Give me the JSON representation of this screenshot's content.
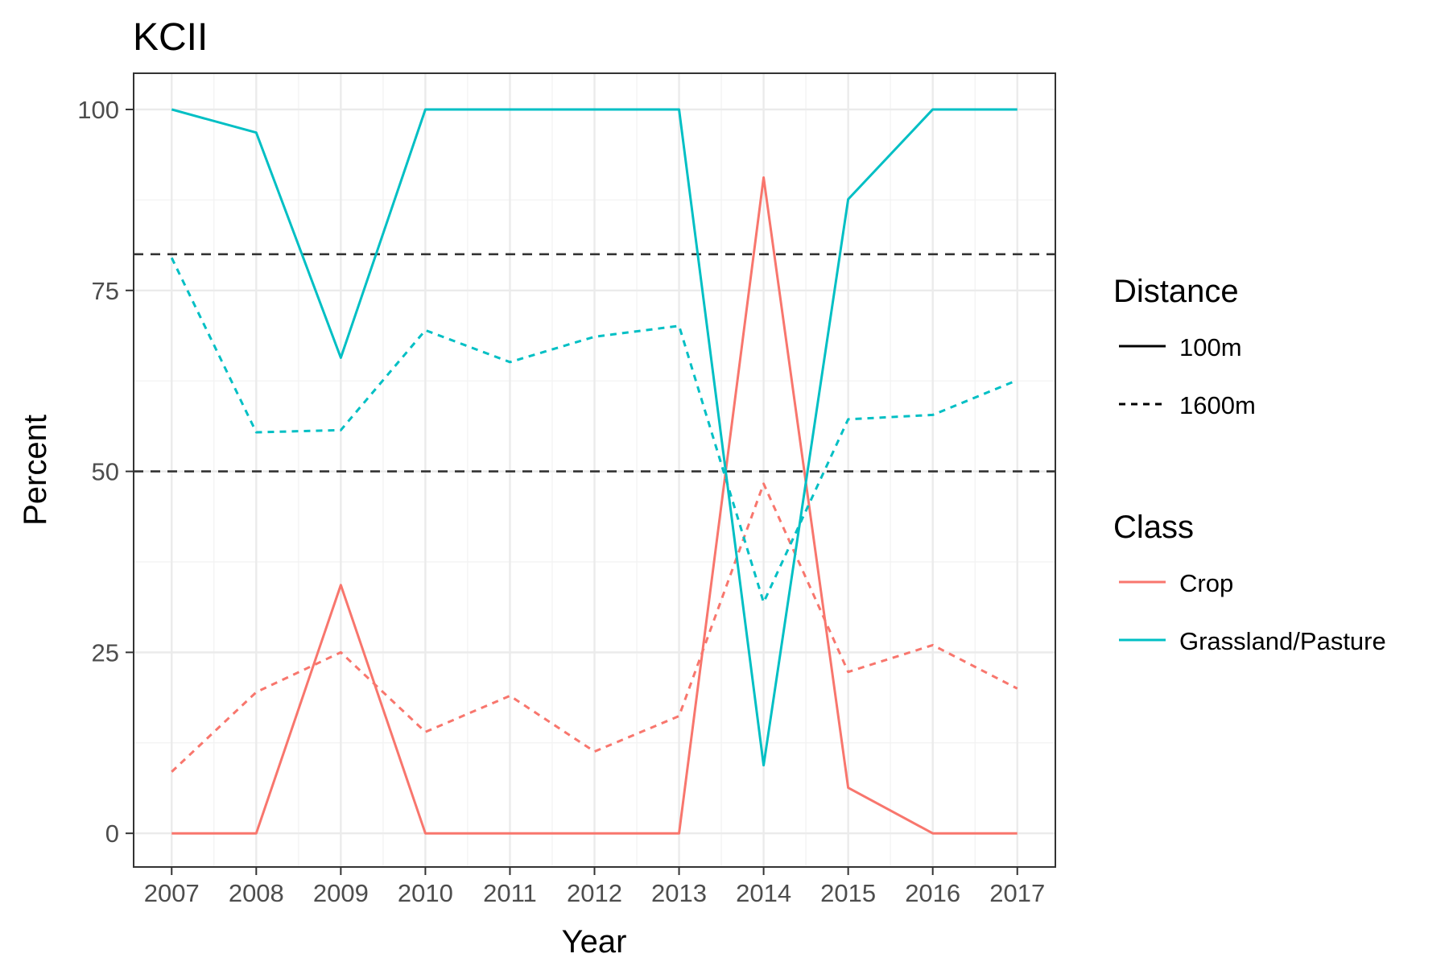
{
  "chart_data": {
    "type": "line",
    "title": "KCII",
    "xlabel": "Year",
    "ylabel": "Percent",
    "x": [
      2007,
      2008,
      2009,
      2010,
      2011,
      2012,
      2013,
      2014,
      2015,
      2016,
      2017
    ],
    "xlim": [
      2006.55,
      2017.45
    ],
    "ylim": [
      -4.65,
      105
    ],
    "y_ticks": [
      0,
      25,
      50,
      75,
      100
    ],
    "grid": true,
    "reference_lines": [
      {
        "y": 80,
        "style": "dashed",
        "color": "#333333"
      },
      {
        "y": 50,
        "style": "dashed",
        "color": "#333333"
      }
    ],
    "legends": [
      {
        "title": "Distance",
        "entries": [
          {
            "label": "100m",
            "linetype": "solid"
          },
          {
            "label": "1600m",
            "linetype": "dashed"
          }
        ]
      },
      {
        "title": "Class",
        "entries": [
          {
            "label": "Crop",
            "color": "#F8766D"
          },
          {
            "label": "Grassland/Pasture",
            "color": "#00BFC4"
          }
        ]
      }
    ],
    "legend_placement": "right",
    "series": [
      {
        "class": "Crop",
        "distance": "100m",
        "color": "#F8766D",
        "linetype": "solid",
        "values": [
          0,
          0,
          34.3,
          0,
          0,
          0,
          0,
          90.6,
          6.3,
          0,
          0
        ]
      },
      {
        "class": "Crop",
        "distance": "1600m",
        "color": "#F8766D",
        "linetype": "dashed",
        "values": [
          8.5,
          19.5,
          25.0,
          14.0,
          19.0,
          11.3,
          16.2,
          48.3,
          22.3,
          26.0,
          20.0
        ]
      },
      {
        "class": "Grassland/Pasture",
        "distance": "100m",
        "color": "#00BFC4",
        "linetype": "solid",
        "values": [
          100,
          96.8,
          65.7,
          100,
          100,
          100,
          100,
          9.4,
          87.6,
          100,
          100
        ]
      },
      {
        "class": "Grassland/Pasture",
        "distance": "1600m",
        "color": "#00BFC4",
        "linetype": "dashed",
        "values": [
          79.5,
          55.4,
          55.7,
          69.5,
          65.1,
          68.6,
          70.1,
          31.9,
          57.2,
          57.8,
          62.6
        ]
      }
    ]
  }
}
